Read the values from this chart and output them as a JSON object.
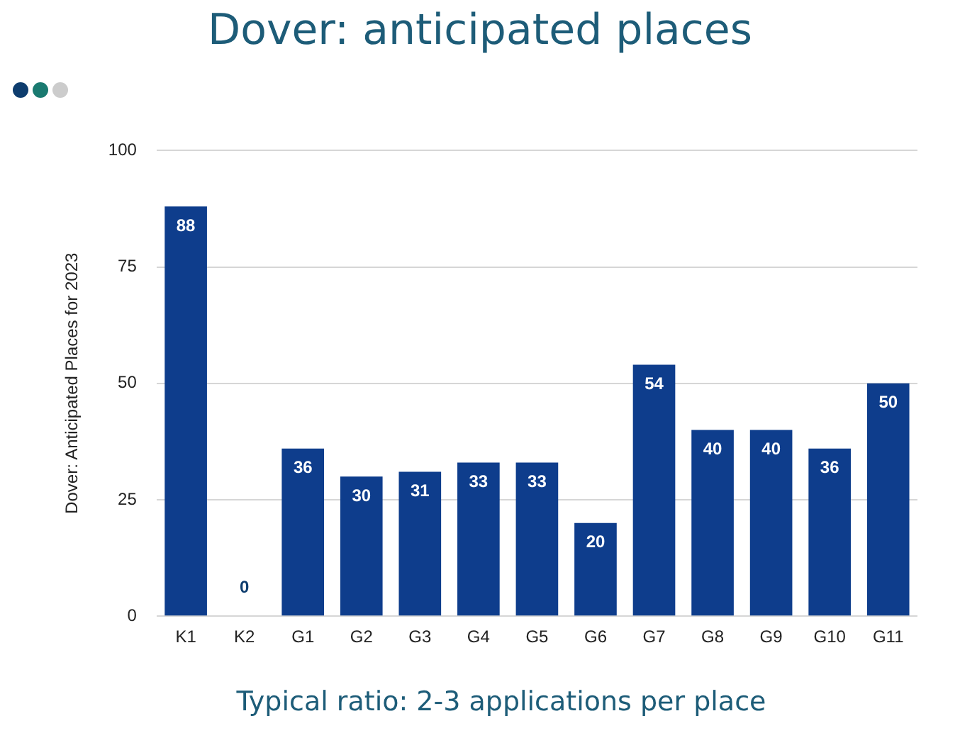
{
  "chart_data": {
    "type": "bar",
    "title": "Dover: anticipated places",
    "ylabel": "Dover: Anticipated Places for 2023",
    "categories": [
      "K1",
      "K2",
      "G1",
      "G2",
      "G3",
      "G4",
      "G5",
      "G6",
      "G7",
      "G8",
      "G9",
      "G10",
      "G11"
    ],
    "values": [
      88,
      0,
      36,
      30,
      31,
      33,
      33,
      20,
      54,
      40,
      40,
      36,
      50
    ],
    "color": "#0e3d8c",
    "ylim": [
      0,
      100
    ],
    "yticks": [
      0,
      25,
      50,
      75,
      100
    ],
    "grid": "y",
    "data_labels": true,
    "annotations": [
      "Typical ratio: 2-3 applications per place"
    ]
  }
}
